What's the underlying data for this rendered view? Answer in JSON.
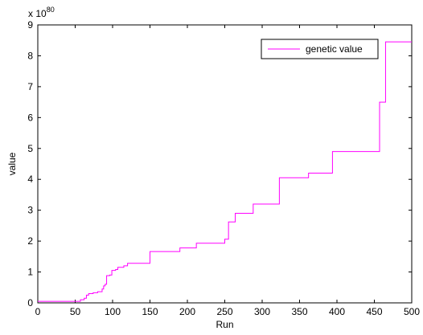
{
  "chart_data": {
    "type": "line",
    "title": "",
    "xlabel": "Run",
    "ylabel": "value",
    "xlim": [
      0,
      500
    ],
    "ylim": [
      0,
      9
    ],
    "xticks": [
      0,
      50,
      100,
      150,
      200,
      250,
      300,
      350,
      400,
      450,
      500
    ],
    "yticks": [
      0,
      1,
      2,
      3,
      4,
      5,
      6,
      7,
      8,
      9
    ],
    "y_scale_factor": {
      "base": "x 10",
      "exponent": "80"
    },
    "grid": false,
    "legend": {
      "position": "top-right"
    },
    "series": [
      {
        "name": "genetic value",
        "color": "#ff00ff",
        "step": true,
        "points": [
          [
            0,
            0.05
          ],
          [
            55,
            0.05
          ],
          [
            57,
            0.1
          ],
          [
            62,
            0.15
          ],
          [
            65,
            0.25
          ],
          [
            68,
            0.3
          ],
          [
            74,
            0.33
          ],
          [
            80,
            0.36
          ],
          [
            86,
            0.45
          ],
          [
            88,
            0.55
          ],
          [
            90,
            0.6
          ],
          [
            92,
            0.88
          ],
          [
            96,
            0.9
          ],
          [
            99,
            1.05
          ],
          [
            104,
            1.08
          ],
          [
            107,
            1.15
          ],
          [
            115,
            1.2
          ],
          [
            120,
            1.28
          ],
          [
            150,
            1.66
          ],
          [
            190,
            1.78
          ],
          [
            212,
            1.93
          ],
          [
            250,
            2.06
          ],
          [
            255,
            2.62
          ],
          [
            264,
            2.9
          ],
          [
            288,
            3.2
          ],
          [
            323,
            4.05
          ],
          [
            362,
            4.2
          ],
          [
            394,
            4.9
          ],
          [
            457,
            6.5
          ],
          [
            465,
            8.45
          ],
          [
            500,
            8.45
          ]
        ]
      }
    ]
  }
}
